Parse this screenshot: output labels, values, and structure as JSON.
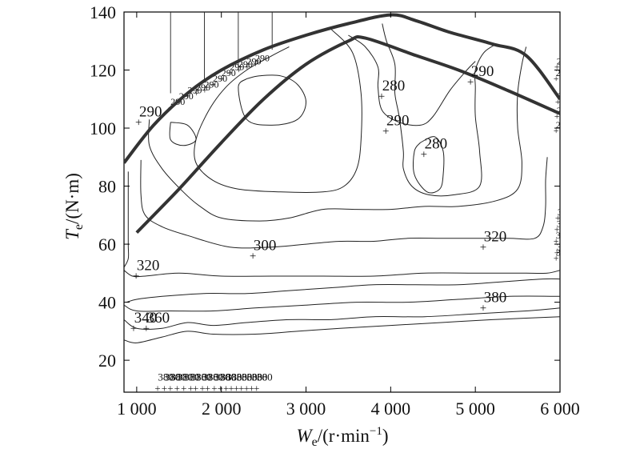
{
  "chart_data": {
    "type": "contour",
    "xlabel": {
      "symbol": "W",
      "subscript": "e",
      "unit": "/(r·min",
      "sup": "−1",
      "close": ")"
    },
    "ylabel": {
      "symbol": "T",
      "subscript": "e",
      "unit": "/(N·m)"
    },
    "xlim": [
      850,
      6000
    ],
    "ylim": [
      9,
      140
    ],
    "x_ticks": [
      {
        "value": 1000,
        "label": "1 000"
      },
      {
        "value": 2000,
        "label": "2 000"
      },
      {
        "value": 3000,
        "label": "3 000"
      },
      {
        "value": 4000,
        "label": "4 000"
      },
      {
        "value": 5000,
        "label": "5 000"
      },
      {
        "value": 6000,
        "label": "6 000"
      }
    ],
    "y_ticks": [
      {
        "value": 20,
        "label": "20"
      },
      {
        "value": 40,
        "label": "40"
      },
      {
        "value": 60,
        "label": "60"
      },
      {
        "value": 80,
        "label": "80"
      },
      {
        "value": 100,
        "label": "100"
      },
      {
        "value": 120,
        "label": "120"
      },
      {
        "value": 140,
        "label": "140"
      }
    ],
    "grid": false,
    "series": [
      {
        "role": "max-torque-curve",
        "points": [
          [
            850,
            88
          ],
          [
            1200,
            101
          ],
          [
            1600,
            112
          ],
          [
            2000,
            120
          ],
          [
            2500,
            127
          ],
          [
            3000,
            132
          ],
          [
            3500,
            136
          ],
          [
            4000,
            139
          ],
          [
            4300,
            137
          ],
          [
            4700,
            133
          ],
          [
            5200,
            129
          ],
          [
            5600,
            125
          ],
          [
            6000,
            110
          ]
        ]
      },
      {
        "role": "operating-line",
        "points": [
          [
            1000,
            64
          ],
          [
            1500,
            79
          ],
          [
            2000,
            95
          ],
          [
            2500,
            110
          ],
          [
            3000,
            122
          ],
          [
            3500,
            130
          ],
          [
            3700,
            131
          ],
          [
            4300,
            125
          ],
          [
            4800,
            120
          ],
          [
            5300,
            114
          ],
          [
            6000,
            105
          ]
        ]
      }
    ],
    "contour_lines": [
      {
        "level": 280,
        "points": [
          [
            3500,
            132
          ],
          [
            3700,
            128
          ],
          [
            3850,
            121
          ],
          [
            3850,
            114
          ],
          [
            3900,
            106
          ],
          [
            4100,
            102
          ],
          [
            4350,
            101
          ],
          [
            4500,
            104
          ],
          [
            4700,
            113
          ],
          [
            4900,
            120
          ],
          [
            5000,
            123
          ]
        ]
      },
      {
        "level": 280,
        "points": [
          [
            4350,
            95
          ],
          [
            4280,
            92
          ],
          [
            4280,
            84
          ],
          [
            4430,
            78
          ],
          [
            4580,
            79
          ],
          [
            4620,
            84
          ],
          [
            4620,
            92
          ],
          [
            4520,
            97
          ],
          [
            4350,
            95
          ]
        ]
      },
      {
        "level": 280,
        "points": [
          [
            2300,
            117
          ],
          [
            2200,
            114
          ],
          [
            2300,
            103
          ],
          [
            2600,
            101
          ],
          [
            2900,
            103
          ],
          [
            3000,
            109
          ],
          [
            2900,
            115
          ],
          [
            2700,
            118
          ],
          [
            2450,
            118
          ],
          [
            2300,
            117
          ]
        ]
      },
      {
        "level": 290,
        "points": [
          [
            1400,
            102
          ],
          [
            1400,
            96
          ],
          [
            1550,
            94
          ],
          [
            1700,
            96
          ],
          [
            1600,
            101
          ],
          [
            1400,
            102
          ]
        ]
      },
      {
        "level": 290,
        "points": [
          [
            3300,
            134
          ],
          [
            3550,
            126
          ],
          [
            3650,
            112
          ],
          [
            3650,
            96
          ],
          [
            3600,
            86
          ],
          [
            3450,
            80
          ],
          [
            3200,
            78
          ],
          [
            2700,
            78
          ],
          [
            2200,
            79
          ],
          [
            1900,
            82
          ],
          [
            1700,
            88
          ],
          [
            1700,
            96
          ],
          [
            1850,
            106
          ],
          [
            2050,
            114
          ],
          [
            2300,
            120
          ],
          [
            2600,
            125
          ],
          [
            2800,
            128
          ]
        ]
      },
      {
        "level": 290,
        "points": [
          [
            3900,
            136
          ],
          [
            3950,
            130
          ],
          [
            4050,
            122
          ],
          [
            4050,
            112
          ],
          [
            4100,
            104
          ],
          [
            4150,
            92
          ],
          [
            4150,
            86
          ],
          [
            4250,
            80
          ],
          [
            4450,
            77
          ],
          [
            4750,
            77
          ],
          [
            5050,
            80
          ],
          [
            5050,
            92
          ],
          [
            5000,
            104
          ],
          [
            5000,
            114
          ],
          [
            5000,
            120
          ],
          [
            5100,
            126
          ],
          [
            5250,
            129
          ]
        ]
      },
      {
        "level": 300,
        "points": [
          [
            1150,
            103
          ],
          [
            1150,
            94
          ],
          [
            1300,
            86
          ],
          [
            1550,
            78
          ],
          [
            1750,
            73
          ],
          [
            2000,
            69
          ],
          [
            2450,
            68
          ],
          [
            2800,
            69
          ],
          [
            3200,
            72
          ],
          [
            3600,
            72
          ],
          [
            4000,
            72
          ],
          [
            4400,
            73
          ],
          [
            4800,
            73
          ],
          [
            5250,
            75
          ],
          [
            5500,
            79
          ],
          [
            5550,
            88
          ],
          [
            5500,
            100
          ],
          [
            5500,
            112
          ],
          [
            5550,
            122
          ],
          [
            5600,
            128
          ]
        ]
      },
      {
        "level": 320,
        "points": [
          [
            1050,
            89
          ],
          [
            1050,
            77
          ],
          [
            1100,
            70
          ],
          [
            1300,
            66
          ],
          [
            1600,
            63
          ],
          [
            2100,
            59
          ],
          [
            2600,
            59
          ],
          [
            3000,
            60
          ],
          [
            3400,
            61
          ],
          [
            3800,
            61
          ],
          [
            4200,
            62
          ],
          [
            4600,
            62
          ],
          [
            5000,
            62
          ],
          [
            5400,
            62
          ],
          [
            5700,
            62
          ],
          [
            5800,
            66
          ],
          [
            5830,
            73
          ],
          [
            5830,
            82
          ],
          [
            5850,
            90
          ]
        ]
      },
      {
        "level": 320,
        "points": [
          [
            900,
            85
          ],
          [
            900,
            72
          ],
          [
            900,
            60
          ],
          [
            900,
            55
          ],
          [
            850,
            52
          ]
        ]
      },
      {
        "level": 340,
        "points": [
          [
            850,
            51
          ],
          [
            950,
            49
          ],
          [
            1100,
            49
          ],
          [
            1500,
            50
          ],
          [
            2000,
            49
          ],
          [
            2600,
            49
          ],
          [
            3200,
            49
          ],
          [
            3800,
            49
          ],
          [
            4400,
            50
          ],
          [
            5000,
            50
          ],
          [
            5600,
            50
          ],
          [
            5850,
            50
          ],
          [
            6000,
            51
          ]
        ]
      },
      {
        "level": 360,
        "points": [
          [
            880,
            40
          ],
          [
            1000,
            41
          ],
          [
            1300,
            42
          ],
          [
            1800,
            43
          ],
          [
            2300,
            43
          ],
          [
            2800,
            44
          ],
          [
            3300,
            45
          ],
          [
            3800,
            46
          ],
          [
            4300,
            46
          ],
          [
            4800,
            46
          ],
          [
            5300,
            47
          ],
          [
            5800,
            48
          ],
          [
            6000,
            48
          ]
        ]
      },
      {
        "level": 380,
        "points": [
          [
            850,
            39
          ],
          [
            1000,
            37
          ],
          [
            1400,
            37
          ],
          [
            1900,
            37
          ],
          [
            2400,
            38
          ],
          [
            3000,
            39
          ],
          [
            3600,
            40
          ],
          [
            4200,
            40
          ],
          [
            4800,
            41
          ],
          [
            5400,
            42
          ],
          [
            6000,
            42
          ]
        ]
      },
      {
        "level": 380,
        "points": [
          [
            850,
            34
          ],
          [
            1000,
            31
          ],
          [
            1300,
            31
          ],
          [
            1600,
            33
          ],
          [
            1900,
            32
          ],
          [
            2300,
            33
          ],
          [
            2800,
            34
          ],
          [
            3300,
            34
          ],
          [
            3800,
            35
          ],
          [
            4400,
            35
          ],
          [
            5000,
            36
          ],
          [
            5600,
            37
          ],
          [
            6000,
            38
          ]
        ]
      },
      {
        "level": 380,
        "points": [
          [
            850,
            27
          ],
          [
            1000,
            26
          ],
          [
            1300,
            28
          ],
          [
            1600,
            30
          ],
          [
            1900,
            29
          ],
          [
            2400,
            29
          ],
          [
            2900,
            30
          ],
          [
            3400,
            31
          ],
          [
            4000,
            32
          ],
          [
            4600,
            33
          ],
          [
            5200,
            34
          ],
          [
            6000,
            35
          ]
        ]
      }
    ],
    "contour_labels": [
      {
        "text": "280",
        "x": 4400,
        "y": 93
      },
      {
        "text": "280",
        "x": 3900,
        "y": 113
      },
      {
        "text": "290",
        "x": 3950,
        "y": 101
      },
      {
        "text": "290",
        "x": 4950,
        "y": 118
      },
      {
        "text": "300",
        "x": 2380,
        "y": 58
      },
      {
        "text": "320",
        "x": 5100,
        "y": 61
      },
      {
        "text": "320",
        "x": 1000,
        "y": 51
      },
      {
        "text": "380",
        "x": 5100,
        "y": 40
      },
      {
        "text": "340",
        "x": 970,
        "y": 33
      },
      {
        "text": "360",
        "x": 1120,
        "y": 33
      },
      {
        "text": "290",
        "x": 1030,
        "y": 104
      }
    ],
    "cluttered_labels": {
      "bottom_row": {
        "text": "380",
        "y": 13,
        "x_positions": [
          1250,
          1330,
          1400,
          1480,
          1560,
          1640,
          1700,
          1780,
          1840,
          1920,
          1990,
          2060,
          2120,
          2180,
          2240,
          2300,
          2360,
          2420
        ]
      },
      "top_left_cluster": {
        "text": "290",
        "points": [
          [
            1400,
            108
          ],
          [
            1500,
            110
          ],
          [
            1600,
            112
          ],
          [
            1700,
            113
          ],
          [
            1800,
            114
          ],
          [
            1900,
            116
          ],
          [
            2000,
            118
          ],
          [
            2100,
            120
          ],
          [
            2200,
            121
          ],
          [
            2300,
            122
          ],
          [
            2400,
            123
          ]
        ]
      },
      "right_edge_cluster": {
        "text": "320",
        "points": [
          [
            5950,
            62
          ],
          [
            5960,
            66
          ],
          [
            5970,
            70
          ],
          [
            5960,
            58
          ],
          [
            5950,
            56
          ]
        ]
      },
      "right_edge_top_cluster": {
        "text": "290",
        "points": [
          [
            5950,
            100
          ],
          [
            5960,
            105
          ],
          [
            5970,
            110
          ],
          [
            5950,
            118
          ],
          [
            5960,
            122
          ]
        ]
      }
    },
    "vertical_lines_x": [
      1400,
      1800,
      2200,
      2600
    ]
  }
}
